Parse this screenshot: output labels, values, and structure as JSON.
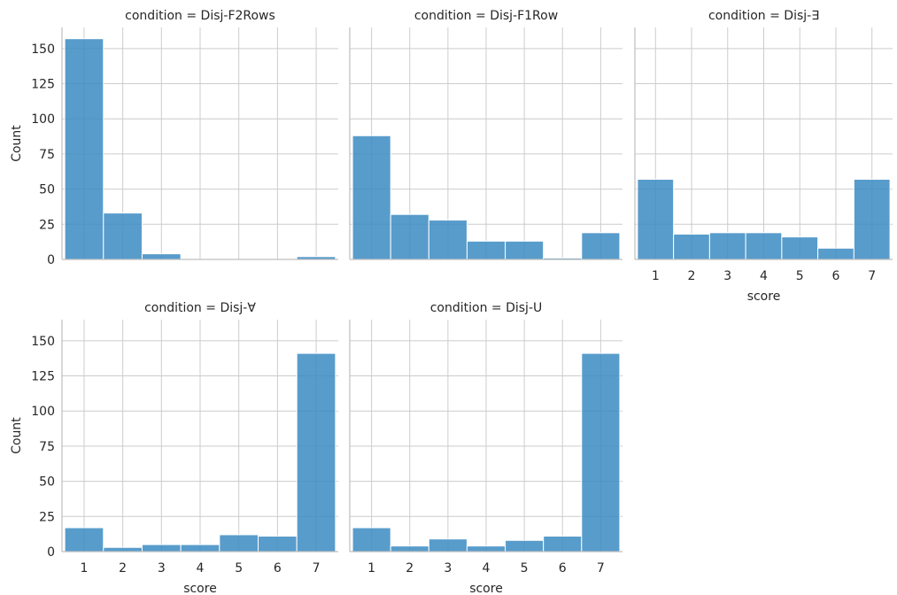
{
  "colors": {
    "bar": "#3b8bc2",
    "grid": "#cccccc",
    "text": "#262626"
  },
  "chart_data": {
    "type": "bar",
    "facet_grid": "condition",
    "x_categories": [
      "1",
      "2",
      "3",
      "4",
      "5",
      "6",
      "7"
    ],
    "xlabel": "score",
    "ylabel": "Count",
    "ylim": [
      0,
      165
    ],
    "yticks": [
      "0",
      "25",
      "50",
      "75",
      "100",
      "125",
      "150"
    ],
    "grid": true,
    "panels": [
      {
        "title": "condition = Disj-F2Rows",
        "values": [
          157,
          33,
          4,
          0,
          0,
          0,
          2
        ]
      },
      {
        "title": "condition = Disj-F1Row",
        "values": [
          88,
          32,
          28,
          13,
          13,
          1,
          19
        ]
      },
      {
        "title": "condition = Disj-∃",
        "values": [
          57,
          18,
          19,
          19,
          16,
          8,
          57
        ]
      },
      {
        "title": "condition = Disj-∀",
        "values": [
          17,
          3,
          5,
          5,
          12,
          11,
          141
        ]
      },
      {
        "title": "condition = Disj-U",
        "values": [
          17,
          4,
          9,
          4,
          8,
          11,
          141
        ]
      }
    ]
  }
}
